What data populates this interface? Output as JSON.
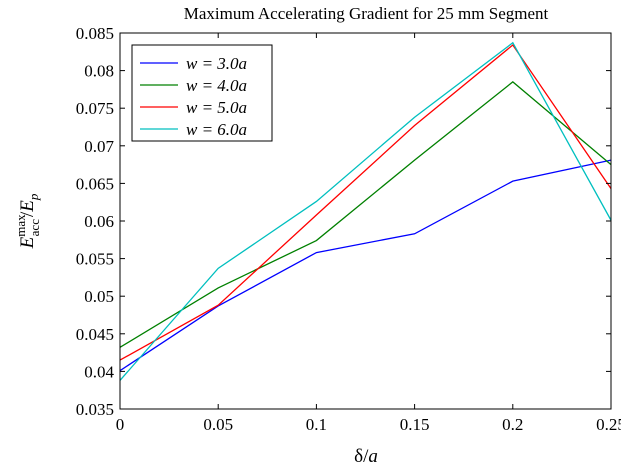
{
  "chart_data": {
    "type": "line",
    "title": "Maximum Accelerating Gradient for 25 mm Segment",
    "xlabel": "δ/a",
    "ylabel": "E_acc^max/E_p",
    "ylabel_parts": {
      "main": "E",
      "sup": "max",
      "sub": "acc",
      "slash": "/",
      "second": "E",
      "second_sub": "p"
    },
    "xlim": [
      0,
      0.25
    ],
    "ylim": [
      0.035,
      0.085
    ],
    "x_ticks": [
      0,
      0.05,
      0.1,
      0.15,
      0.2,
      0.25
    ],
    "x_tick_labels": [
      "0",
      "0.05",
      "0.1",
      "0.15",
      "0.2",
      "0.25"
    ],
    "y_ticks": [
      0.035,
      0.04,
      0.045,
      0.05,
      0.055,
      0.06,
      0.065,
      0.07,
      0.075,
      0.08,
      0.085
    ],
    "y_tick_labels": [
      "0.035",
      "0.04",
      "0.045",
      "0.05",
      "0.055",
      "0.06",
      "0.065",
      "0.07",
      "0.075",
      "0.08",
      "0.085"
    ],
    "grid": false,
    "legend_position": "top-left",
    "x": [
      0,
      0.05,
      0.1,
      0.15,
      0.2,
      0.25
    ],
    "series": [
      {
        "name": "w = 3.0a",
        "color": "#0000ff",
        "values": [
          0.0401,
          0.0487,
          0.0558,
          0.0583,
          0.0653,
          0.0681
        ]
      },
      {
        "name": "w = 4.0a",
        "color": "#008000",
        "values": [
          0.0432,
          0.0511,
          0.0574,
          0.0681,
          0.0785,
          0.0675
        ]
      },
      {
        "name": "w = 5.0a",
        "color": "#ff0000",
        "values": [
          0.0415,
          0.0488,
          0.0608,
          0.0727,
          0.0834,
          0.0643
        ]
      },
      {
        "name": "w = 6.0a",
        "color": "#00bfbf",
        "values": [
          0.0388,
          0.0537,
          0.0626,
          0.0738,
          0.0837,
          0.0601
        ]
      }
    ]
  }
}
